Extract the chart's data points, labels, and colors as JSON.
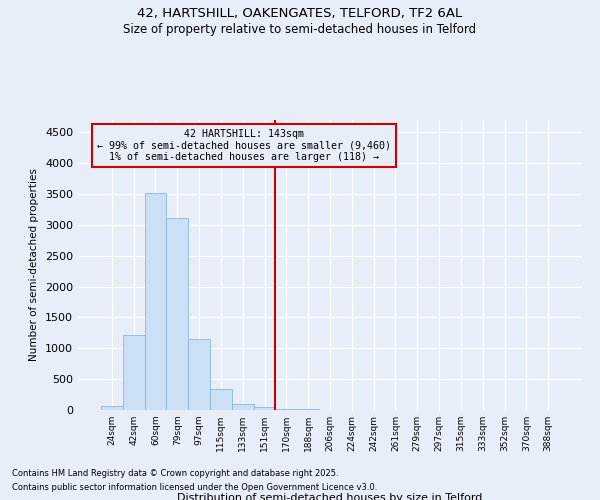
{
  "title1": "42, HARTSHILL, OAKENGATES, TELFORD, TF2 6AL",
  "title2": "Size of property relative to semi-detached houses in Telford",
  "xlabel": "Distribution of semi-detached houses by size in Telford",
  "ylabel": "Number of semi-detached properties",
  "bin_labels": [
    "24sqm",
    "42sqm",
    "60sqm",
    "79sqm",
    "97sqm",
    "115sqm",
    "133sqm",
    "151sqm",
    "170sqm",
    "188sqm",
    "206sqm",
    "224sqm",
    "242sqm",
    "261sqm",
    "279sqm",
    "297sqm",
    "315sqm",
    "333sqm",
    "352sqm",
    "370sqm",
    "388sqm"
  ],
  "bar_values": [
    70,
    1220,
    3520,
    3110,
    1150,
    340,
    105,
    55,
    20,
    10,
    5,
    3,
    2,
    2,
    1,
    1,
    1,
    0,
    0,
    0,
    0
  ],
  "bar_color": "#cce0f5",
  "bar_edgecolor": "#7ab0d4",
  "vline_x": 7.5,
  "vline_color": "#cc0000",
  "annotation_title": "42 HARTSHILL: 143sqm",
  "annotation_line1": "← 99% of semi-detached houses are smaller (9,460)",
  "annotation_line2": "1% of semi-detached houses are larger (118) →",
  "box_color": "#cc0000",
  "ylim": [
    0,
    4700
  ],
  "yticks": [
    0,
    500,
    1000,
    1500,
    2000,
    2500,
    3000,
    3500,
    4000,
    4500
  ],
  "footnote1": "Contains HM Land Registry data © Crown copyright and database right 2025.",
  "footnote2": "Contains public sector information licensed under the Open Government Licence v3.0.",
  "bg_color": "#e8eef8",
  "grid_color": "#ffffff"
}
